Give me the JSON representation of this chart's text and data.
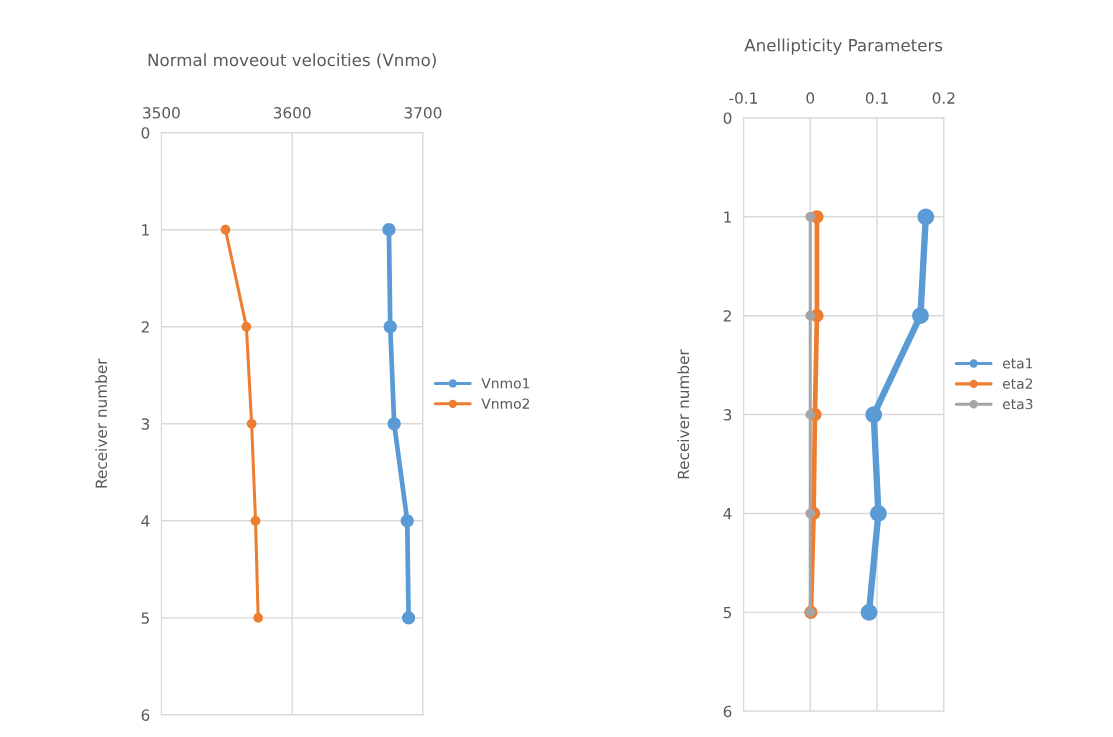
{
  "chart_data": [
    {
      "type": "line",
      "orientation": "horizontal",
      "title": "Normal moveout velocities (Vnmo)",
      "ylabel": "Receiver number",
      "series": [
        {
          "name": "Vnmo1",
          "color": "#5b9bd5",
          "x": [
            1,
            2,
            3,
            4,
            5
          ],
          "values": [
            3674,
            3675,
            3678,
            3688,
            3689
          ]
        },
        {
          "name": "Vnmo2",
          "color": "#ed7d31",
          "x": [
            1,
            2,
            3,
            4,
            5
          ],
          "values": [
            3549,
            3565,
            3569,
            3572,
            3574
          ]
        }
      ],
      "xlim": [
        3500,
        3700
      ],
      "xticks": [
        3500,
        3600,
        3700
      ],
      "ylim": [
        6,
        0
      ],
      "yticks": [
        0,
        1,
        2,
        3,
        4,
        5,
        6
      ],
      "grid": true,
      "legend": "right",
      "marker": "circle"
    },
    {
      "type": "line",
      "orientation": "horizontal",
      "title": "Anellipticity Parameters",
      "ylabel": "Receiver number",
      "series": [
        {
          "name": "eta1",
          "color": "#5b9bd5",
          "x": [
            1,
            2,
            3,
            4,
            5
          ],
          "values": [
            0.173,
            0.165,
            0.095,
            0.102,
            0.088
          ]
        },
        {
          "name": "eta2",
          "color": "#ed7d31",
          "x": [
            1,
            2,
            3,
            4,
            5
          ],
          "values": [
            0.01,
            0.01,
            0.007,
            0.005,
            0.001
          ]
        },
        {
          "name": "eta3",
          "color": "#a5a5a5",
          "x": [
            1,
            2,
            3,
            4,
            5
          ],
          "values": [
            0,
            0,
            0,
            0,
            0
          ]
        }
      ],
      "xlim": [
        -0.1,
        0.2
      ],
      "xticks": [
        -0.1,
        0,
        0.1,
        0.2
      ],
      "ylim": [
        6,
        0
      ],
      "yticks": [
        0,
        1,
        2,
        3,
        4,
        5,
        6
      ],
      "grid": true,
      "legend": "right",
      "marker": "circle"
    }
  ]
}
